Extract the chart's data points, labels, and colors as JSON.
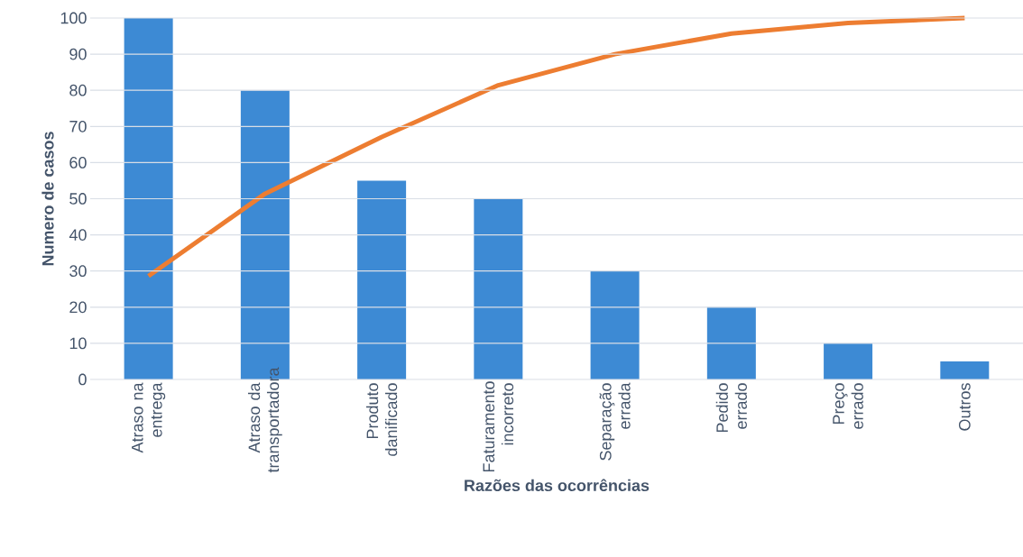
{
  "chart_data": {
    "type": "bar",
    "xlabel": "Razões das ocorrências",
    "ylabel": "Numero de casos",
    "categories": [
      "Atraso na entrega",
      "Atraso da transportadora",
      "Produto danificado",
      "Faturamento incorreto",
      "Separação errada",
      "Pedido errado",
      "Preço errado",
      "Outros"
    ],
    "series": [
      {
        "color": "#3d8ad4",
        "values": [
          100,
          80,
          55,
          50,
          30,
          20,
          10,
          5
        ]
      },
      {
        "type": "line",
        "color": "#ed7d31",
        "marker": "none",
        "values": [
          28.6,
          51.4,
          67.1,
          81.4,
          90,
          95.7,
          98.6,
          100
        ]
      }
    ],
    "ylim": [
      0,
      100
    ],
    "yticks": [
      0,
      10,
      20,
      30,
      40,
      50,
      60,
      70,
      80,
      90,
      100
    ],
    "grid": "y"
  }
}
